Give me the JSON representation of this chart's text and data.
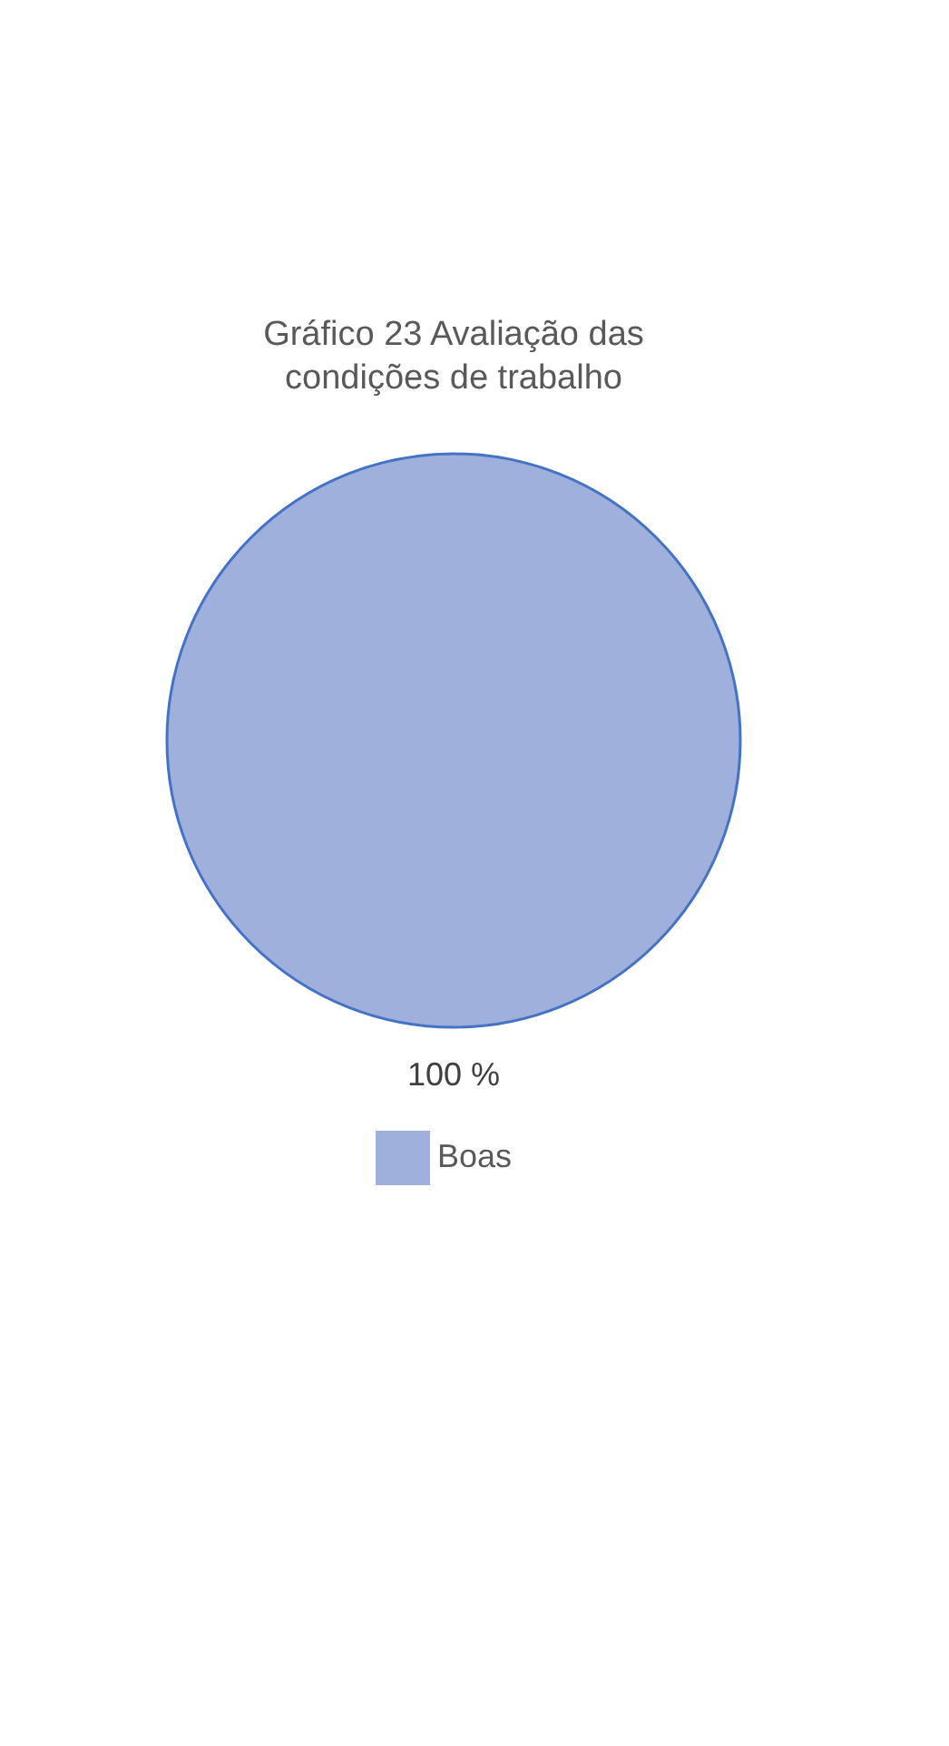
{
  "chart_data": {
    "type": "pie",
    "title": "Gráfico 23  Avaliação das condições de trabalho",
    "categories": [
      "Boas"
    ],
    "values": [
      100
    ],
    "colors": [
      "#9fb0dc"
    ],
    "value_labels": [
      "100 %"
    ],
    "legend": "bottom"
  }
}
